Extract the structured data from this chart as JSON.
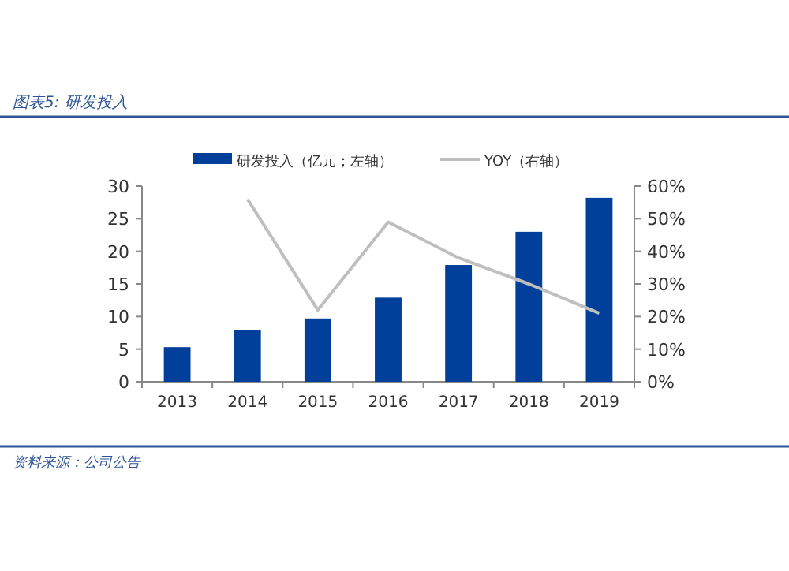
{
  "chart_data": {
    "type": "bar",
    "title": "图表5: 研发投入",
    "annotations": [
      "资料来源：公司公告"
    ],
    "categories": [
      "2013",
      "2014",
      "2015",
      "2016",
      "2017",
      "2018",
      "2019"
    ],
    "series": [
      {
        "name": "研发投入（亿元；左轴）",
        "color": "#003f9a",
        "values": [
          5.3,
          7.9,
          9.7,
          12.9,
          17.9,
          23.0,
          28.2
        ]
      },
      {
        "name": "YOY（右轴）",
        "type": "line",
        "axis": "y2",
        "color": "#bfbfbf",
        "values": [
          null,
          56,
          22,
          49,
          38,
          30,
          21
        ]
      }
    ],
    "ylim": [
      0,
      30
    ],
    "yticks": [
      0,
      5,
      10,
      15,
      20,
      25,
      30
    ],
    "y2lim": [
      0,
      60
    ],
    "y2ticks": [
      {
        "value": 0,
        "label": "0%"
      },
      {
        "value": 10,
        "label": "10%"
      },
      {
        "value": 20,
        "label": "20%"
      },
      {
        "value": 30,
        "label": "30%"
      },
      {
        "value": 40,
        "label": "40%"
      },
      {
        "value": 50,
        "label": "50%"
      },
      {
        "value": 60,
        "label": "60%"
      }
    ],
    "legend": "top",
    "grid": false
  }
}
